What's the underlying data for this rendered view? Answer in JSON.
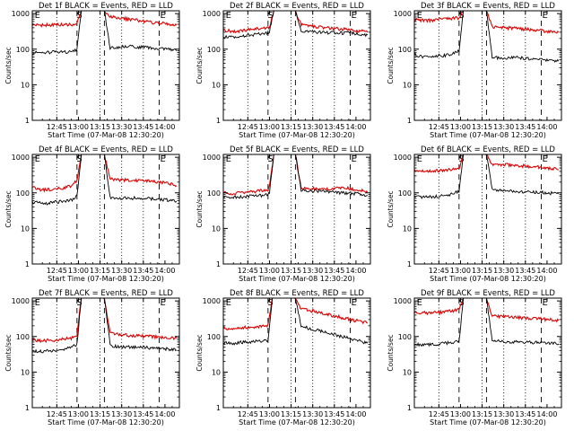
{
  "shared": {
    "ylabel": "Counts/sec",
    "xlabel": "Start Time (07-Mar-08 12:30:20)",
    "x_ticks": [
      "12:45",
      "13:00",
      "13:15",
      "13:30",
      "13:45",
      "14:00"
    ],
    "x_tick_minutes": [
      15,
      30,
      45,
      60,
      75,
      90
    ],
    "y_ticks": [
      "1",
      "10",
      "100",
      "1000"
    ],
    "y_tick_values": [
      1,
      10,
      100,
      1000
    ],
    "ylim": [
      1,
      1200
    ],
    "xlim_minutes": [
      -2,
      100
    ],
    "ylog": true,
    "dotted_minutes": [
      15,
      45,
      60,
      75
    ],
    "dashed_minutes": [
      29,
      48,
      86
    ],
    "markers": [
      {
        "label": "E",
        "minute": -1
      },
      {
        "label": "S",
        "minute": 28
      },
      {
        "label": "E",
        "minute": 86
      }
    ],
    "colors": {
      "events": "#000000",
      "lld": "#dd0000"
    },
    "attenuator_interval_minutes": [
      29,
      48
    ]
  },
  "chart_data": [
    {
      "type": "line",
      "title": "Det 1f BLACK = Events, RED = LLD",
      "series": [
        {
          "key": "events",
          "x": [
            -2,
            5,
            10,
            15,
            20,
            25,
            29,
            32,
            40,
            48,
            52,
            55,
            60,
            65,
            70,
            75,
            80,
            85,
            90,
            95,
            98
          ],
          "y": [
            80,
            80,
            82,
            82,
            82,
            85,
            95,
            1200,
            1200,
            1200,
            105,
            110,
            118,
            120,
            115,
            112,
            108,
            104,
            100,
            95,
            90
          ]
        },
        {
          "key": "lld",
          "x": [
            -2,
            5,
            10,
            15,
            20,
            25,
            29,
            32,
            40,
            48,
            52,
            55,
            60,
            65,
            70,
            75,
            80,
            85,
            90,
            95,
            98
          ],
          "y": [
            480,
            475,
            480,
            480,
            485,
            490,
            520,
            1200,
            1200,
            1200,
            820,
            780,
            730,
            700,
            650,
            600,
            570,
            550,
            520,
            500,
            470
          ]
        }
      ]
    },
    {
      "type": "line",
      "title": "Det 2f BLACK = Events, RED = LLD",
      "series": [
        {
          "key": "events",
          "x": [
            -2,
            5,
            10,
            15,
            20,
            25,
            29,
            30,
            33,
            40,
            48,
            52,
            60,
            70,
            80,
            90,
            98
          ],
          "y": [
            230,
            210,
            225,
            240,
            260,
            270,
            280,
            320,
            1200,
            1200,
            1200,
            310,
            300,
            290,
            285,
            270,
            250
          ]
        },
        {
          "key": "lld",
          "x": [
            -2,
            5,
            10,
            15,
            20,
            25,
            29,
            30,
            33,
            40,
            48,
            52,
            60,
            70,
            80,
            90,
            98
          ],
          "y": [
            340,
            320,
            330,
            350,
            370,
            380,
            400,
            420,
            1200,
            1200,
            1200,
            480,
            440,
            400,
            370,
            340,
            300
          ]
        }
      ]
    },
    {
      "type": "line",
      "title": "Det 3f BLACK = Events, RED = LLD",
      "series": [
        {
          "key": "events",
          "x": [
            -2,
            5,
            10,
            15,
            20,
            25,
            29,
            32,
            40,
            48,
            52,
            60,
            70,
            80,
            90,
            98
          ],
          "y": [
            70,
            60,
            62,
            65,
            68,
            75,
            90,
            1200,
            1200,
            1200,
            60,
            55,
            58,
            52,
            50,
            46
          ]
        },
        {
          "key": "lld",
          "x": [
            -2,
            5,
            10,
            15,
            20,
            25,
            29,
            32,
            40,
            48,
            52,
            60,
            70,
            80,
            90,
            98
          ],
          "y": [
            680,
            640,
            650,
            700,
            720,
            730,
            760,
            1200,
            1200,
            1200,
            420,
            400,
            380,
            350,
            320,
            300
          ]
        }
      ]
    },
    {
      "type": "line",
      "title": "Det 4f BLACK = Events, RED = LLD",
      "series": [
        {
          "key": "events",
          "x": [
            -2,
            5,
            10,
            15,
            20,
            25,
            29,
            32,
            40,
            48,
            52,
            60,
            70,
            80,
            90,
            98
          ],
          "y": [
            55,
            50,
            52,
            55,
            58,
            62,
            80,
            1200,
            1200,
            1200,
            75,
            70,
            72,
            68,
            64,
            58
          ]
        },
        {
          "key": "lld",
          "x": [
            -2,
            5,
            10,
            15,
            20,
            25,
            29,
            32,
            40,
            48,
            52,
            60,
            70,
            80,
            90,
            98
          ],
          "y": [
            140,
            120,
            125,
            130,
            140,
            160,
            220,
            1200,
            1200,
            1200,
            250,
            230,
            220,
            210,
            190,
            160
          ]
        }
      ]
    },
    {
      "type": "line",
      "title": "Det 5f BLACK = Events, RED = LLD",
      "series": [
        {
          "key": "events",
          "x": [
            -2,
            5,
            10,
            15,
            20,
            25,
            29,
            30,
            33,
            40,
            48,
            52,
            60,
            70,
            80,
            90,
            98
          ],
          "y": [
            75,
            75,
            78,
            80,
            82,
            85,
            88,
            100,
            1200,
            1200,
            1200,
            120,
            115,
            110,
            100,
            95,
            85
          ]
        },
        {
          "key": "lld",
          "x": [
            -2,
            5,
            10,
            15,
            20,
            25,
            29,
            30,
            33,
            40,
            48,
            52,
            60,
            70,
            80,
            90,
            98
          ],
          "y": [
            100,
            95,
            100,
            105,
            110,
            115,
            120,
            150,
            1200,
            1200,
            1200,
            140,
            130,
            125,
            140,
            125,
            105
          ]
        }
      ]
    },
    {
      "type": "line",
      "title": "Det 6f BLACK = Events, RED = LLD",
      "series": [
        {
          "key": "events",
          "x": [
            -2,
            5,
            10,
            15,
            20,
            25,
            29,
            32,
            40,
            48,
            52,
            60,
            70,
            80,
            90,
            98
          ],
          "y": [
            75,
            75,
            78,
            80,
            85,
            95,
            110,
            1200,
            1200,
            1200,
            120,
            115,
            110,
            105,
            100,
            95
          ]
        },
        {
          "key": "lld",
          "x": [
            -2,
            5,
            10,
            15,
            20,
            25,
            29,
            32,
            40,
            48,
            52,
            60,
            70,
            80,
            90,
            98
          ],
          "y": [
            420,
            400,
            410,
            420,
            440,
            460,
            480,
            1200,
            1200,
            1200,
            650,
            620,
            580,
            550,
            500,
            450
          ]
        }
      ]
    },
    {
      "type": "line",
      "title": "Det 7f BLACK = Events, RED = LLD",
      "series": [
        {
          "key": "events",
          "x": [
            -2,
            5,
            10,
            15,
            20,
            25,
            29,
            32,
            40,
            48,
            52,
            60,
            70,
            80,
            90,
            98
          ],
          "y": [
            40,
            38,
            40,
            42,
            45,
            48,
            60,
            1200,
            1200,
            1200,
            55,
            52,
            50,
            48,
            45,
            42
          ]
        },
        {
          "key": "lld",
          "x": [
            -2,
            5,
            10,
            15,
            20,
            25,
            29,
            32,
            40,
            48,
            52,
            60,
            70,
            80,
            90,
            98
          ],
          "y": [
            80,
            75,
            78,
            80,
            85,
            90,
            110,
            1200,
            1200,
            1200,
            120,
            110,
            105,
            100,
            95,
            90
          ]
        }
      ]
    },
    {
      "type": "line",
      "title": "Det 8f BLACK = Events, RED = LLD",
      "series": [
        {
          "key": "events",
          "x": [
            -2,
            5,
            10,
            15,
            20,
            25,
            29,
            32,
            40,
            48,
            52,
            60,
            70,
            80,
            90,
            98
          ],
          "y": [
            65,
            65,
            68,
            70,
            72,
            75,
            80,
            1200,
            1200,
            1200,
            190,
            160,
            130,
            100,
            80,
            65
          ]
        },
        {
          "key": "lld",
          "x": [
            -2,
            5,
            10,
            15,
            20,
            25,
            29,
            32,
            40,
            48,
            52,
            60,
            70,
            80,
            90,
            98
          ],
          "y": [
            170,
            170,
            175,
            180,
            185,
            190,
            200,
            1200,
            1200,
            1200,
            600,
            520,
            420,
            340,
            280,
            240
          ]
        }
      ]
    },
    {
      "type": "line",
      "title": "Det 9f BLACK = Events, RED = LLD",
      "series": [
        {
          "key": "events",
          "x": [
            -2,
            5,
            10,
            15,
            20,
            25,
            29,
            32,
            40,
            48,
            52,
            60,
            70,
            80,
            90,
            98
          ],
          "y": [
            60,
            58,
            60,
            62,
            65,
            68,
            75,
            1200,
            1200,
            1200,
            75,
            72,
            70,
            68,
            65,
            62
          ]
        },
        {
          "key": "lld",
          "x": [
            -2,
            5,
            10,
            15,
            20,
            25,
            29,
            32,
            40,
            48,
            52,
            60,
            70,
            80,
            90,
            98
          ],
          "y": [
            480,
            460,
            470,
            480,
            500,
            520,
            560,
            1200,
            1200,
            1200,
            380,
            360,
            340,
            320,
            300,
            280
          ]
        }
      ]
    }
  ]
}
